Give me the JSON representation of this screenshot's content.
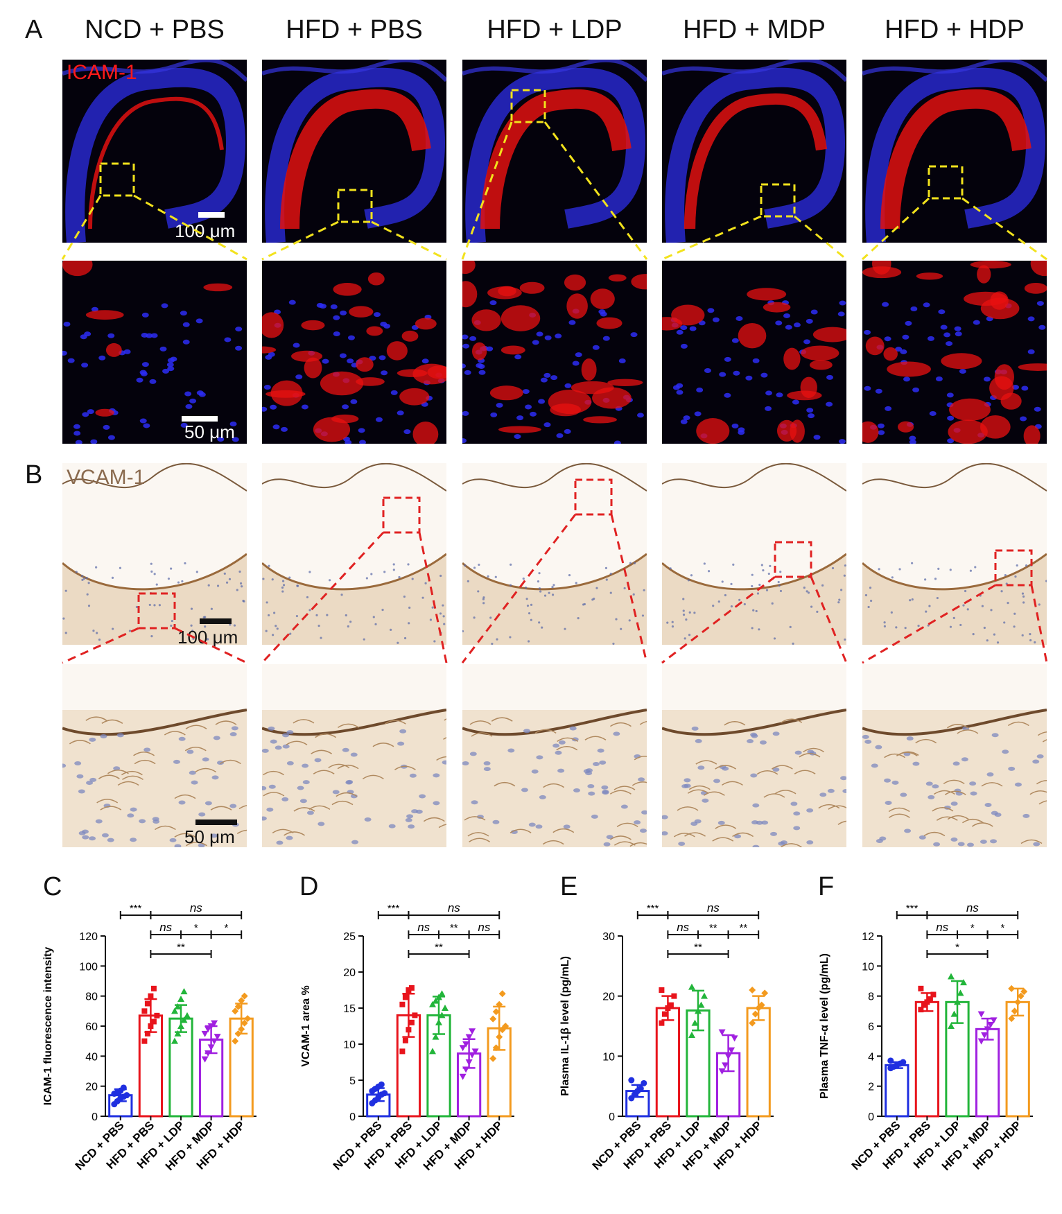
{
  "panels": {
    "A": "A",
    "B": "B",
    "C": "C",
    "D": "D",
    "E": "E",
    "F": "F"
  },
  "groups": [
    "NCD + PBS",
    "HFD + PBS",
    "HFD + LDP",
    "HFD + MDP",
    "HFD + HDP"
  ],
  "group_colors": [
    "#1f2fe0",
    "#e8141c",
    "#22b53a",
    "#a020e0",
    "#f39a1e"
  ],
  "stains": {
    "if_label": "ICAM-1",
    "ihc_label": "VCAM-1"
  },
  "scale_bars": {
    "top_large": "100 μm",
    "top_small": "50 μm",
    "bot_large": "100 μm",
    "bot_small": "50 μm"
  },
  "chart_data": [
    {
      "type": "bar",
      "panel": "C",
      "categories": [
        "NCD + PBS",
        "HFD + PBS",
        "HFD + LDP",
        "HFD + MDP",
        "HFD + HDP"
      ],
      "values": [
        14,
        67,
        65,
        51,
        65
      ],
      "sd": [
        4,
        11,
        9,
        9,
        10
      ],
      "points": [
        [
          8,
          10,
          12,
          13,
          14,
          15,
          16,
          17,
          19
        ],
        [
          50,
          55,
          60,
          63,
          67,
          70,
          75,
          80,
          85
        ],
        [
          50,
          55,
          60,
          64,
          67,
          70,
          73,
          78,
          83
        ],
        [
          38,
          42,
          46,
          50,
          53,
          55,
          58,
          60,
          62
        ],
        [
          50,
          55,
          58,
          62,
          65,
          70,
          73,
          77,
          80
        ]
      ],
      "ylabel": "ICAM-1 fluorescence intensity",
      "ylim": [
        0,
        120
      ],
      "yticks": [
        "0",
        "20",
        "40",
        "60",
        "80",
        "100",
        "120"
      ],
      "sig": [
        {
          "from": 0,
          "to": 1,
          "label": "***",
          "level": 0
        },
        {
          "from": 1,
          "to": 4,
          "label": "ns",
          "level": 0
        },
        {
          "from": 1,
          "to": 2,
          "label": "ns",
          "level": 1
        },
        {
          "from": 2,
          "to": 3,
          "label": "*",
          "level": 1
        },
        {
          "from": 3,
          "to": 4,
          "label": "*",
          "level": 1
        },
        {
          "from": 1,
          "to": 3,
          "label": "**",
          "level": 2
        }
      ]
    },
    {
      "type": "bar",
      "panel": "D",
      "categories": [
        "NCD + PBS",
        "HFD + PBS",
        "HFD + LDP",
        "HFD + MDP",
        "HFD + HDP"
      ],
      "values": [
        3,
        14,
        14,
        8.7,
        12.2
      ],
      "sd": [
        0.9,
        3,
        2.6,
        2,
        3
      ],
      "points": [
        [
          1.8,
          2.2,
          2.6,
          3.0,
          3.2,
          3.5,
          3.8,
          4.1,
          4.4
        ],
        [
          9,
          10.5,
          12,
          13,
          14,
          15.5,
          16.5,
          17.5,
          17.8
        ],
        [
          9,
          11,
          13,
          14,
          15,
          15.5,
          16,
          16.5,
          17
        ],
        [
          5.5,
          6.5,
          7.5,
          8.5,
          9,
          9.5,
          10,
          11,
          11.8
        ],
        [
          8,
          9.5,
          11,
          12,
          12.5,
          13.5,
          14.5,
          15.5,
          17
        ]
      ],
      "ylabel": "VCAM-1 area %",
      "ylim": [
        0,
        25
      ],
      "yticks": [
        "0",
        "5",
        "10",
        "15",
        "20",
        "25"
      ],
      "sig": [
        {
          "from": 0,
          "to": 1,
          "label": "***",
          "level": 0
        },
        {
          "from": 1,
          "to": 4,
          "label": "ns",
          "level": 0
        },
        {
          "from": 1,
          "to": 2,
          "label": "ns",
          "level": 1
        },
        {
          "from": 2,
          "to": 3,
          "label": "**",
          "level": 1
        },
        {
          "from": 3,
          "to": 4,
          "label": "ns",
          "level": 1
        },
        {
          "from": 1,
          "to": 3,
          "label": "**",
          "level": 2
        }
      ]
    },
    {
      "type": "bar",
      "panel": "E",
      "categories": [
        "NCD + PBS",
        "HFD + PBS",
        "HFD + LDP",
        "HFD + MDP",
        "HFD + HDP"
      ],
      "values": [
        4.2,
        18,
        17.6,
        10.5,
        18
      ],
      "sd": [
        1,
        2,
        3.3,
        3,
        2
      ],
      "points": [
        [
          3,
          3.6,
          4.2,
          4.6,
          5.5,
          6
        ],
        [
          15.5,
          17,
          18,
          18.5,
          20,
          21
        ],
        [
          13.5,
          15.5,
          17.5,
          18.5,
          20,
          21.5
        ],
        [
          7.5,
          8.5,
          10,
          11,
          13,
          14
        ],
        [
          15.5,
          17,
          18,
          18.5,
          20.5,
          21
        ]
      ],
      "ylabel": "Plasma IL-1β level (pg/mL)",
      "ylim": [
        0,
        30
      ],
      "yticks": [
        "0",
        "10",
        "20",
        "30"
      ],
      "sig": [
        {
          "from": 0,
          "to": 1,
          "label": "***",
          "level": 0
        },
        {
          "from": 1,
          "to": 4,
          "label": "ns",
          "level": 0
        },
        {
          "from": 1,
          "to": 2,
          "label": "ns",
          "level": 1
        },
        {
          "from": 2,
          "to": 3,
          "label": "**",
          "level": 1
        },
        {
          "from": 3,
          "to": 4,
          "label": "**",
          "level": 1
        },
        {
          "from": 1,
          "to": 3,
          "label": "**",
          "level": 2
        }
      ]
    },
    {
      "type": "bar",
      "panel": "F",
      "categories": [
        "NCD + PBS",
        "HFD + PBS",
        "HFD + LDP",
        "HFD + MDP",
        "HFD + HDP"
      ],
      "values": [
        3.4,
        7.6,
        7.6,
        5.8,
        7.6
      ],
      "sd": [
        0.2,
        0.6,
        1.4,
        0.7,
        0.9
      ],
      "points": [
        [
          3.2,
          3.3,
          3.4,
          3.5,
          3.6,
          3.7
        ],
        [
          7.1,
          7.4,
          7.6,
          7.8,
          8.1,
          8.5
        ],
        [
          6,
          6.8,
          7.6,
          8.2,
          8.9,
          9.3
        ],
        [
          5,
          5.4,
          5.8,
          6.1,
          6.4,
          6.8
        ],
        [
          6.5,
          7,
          7.6,
          8,
          8.3,
          8.5
        ]
      ],
      "ylabel": "Plasma TNF-α level (pg/mL)",
      "ylim": [
        0,
        12
      ],
      "yticks": [
        "0",
        "2",
        "4",
        "6",
        "8",
        "10",
        "12"
      ],
      "sig": [
        {
          "from": 0,
          "to": 1,
          "label": "***",
          "level": 0
        },
        {
          "from": 1,
          "to": 4,
          "label": "ns",
          "level": 0
        },
        {
          "from": 1,
          "to": 2,
          "label": "ns",
          "level": 1
        },
        {
          "from": 2,
          "to": 3,
          "label": "*",
          "level": 1
        },
        {
          "from": 3,
          "to": 4,
          "label": "*",
          "level": 1
        },
        {
          "from": 1,
          "to": 3,
          "label": "*",
          "level": 2
        }
      ]
    }
  ]
}
